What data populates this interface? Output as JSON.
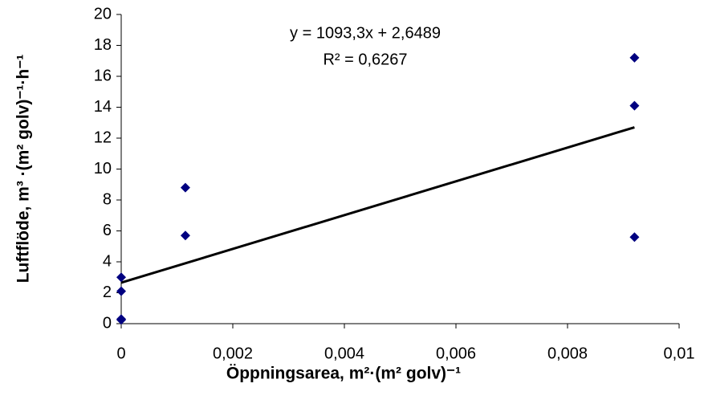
{
  "chart_data": {
    "type": "scatter",
    "x_label": "Öppningsarea, m²·(m² golv)⁻¹",
    "y_label": "Luftflöde, m³ ·(m² golv)⁻¹·h⁻¹",
    "annotations": [
      "y = 1093,3x + 2,6489",
      "R² = 0,6267"
    ],
    "series": [
      {
        "color": "#000080",
        "x": [
          0,
          0,
          0,
          0,
          0.00115,
          0.00115,
          0.0092,
          0.0092,
          0.0092
        ],
        "values": [
          3.0,
          2.1,
          0.3,
          0.25,
          8.8,
          5.7,
          17.2,
          14.1,
          5.6
        ]
      }
    ],
    "trendline": {
      "color": "#000000",
      "x": [
        0,
        0.0092
      ],
      "values": [
        2.65,
        12.7
      ]
    },
    "xlim": [
      0,
      0.01
    ],
    "xticks": [
      0,
      {
        "value": 0.002,
        "label": "0,002"
      },
      {
        "value": 0.004,
        "label": "0,004"
      },
      {
        "value": 0.006,
        "label": "0,006"
      },
      {
        "value": 0.008,
        "label": "0,008"
      },
      {
        "value": 0.01,
        "label": "0,01"
      }
    ],
    "ylim": [
      0,
      20
    ],
    "yticks": [
      0,
      2,
      4,
      6,
      8,
      10,
      12,
      14,
      16,
      18,
      20
    ],
    "grid": false
  }
}
